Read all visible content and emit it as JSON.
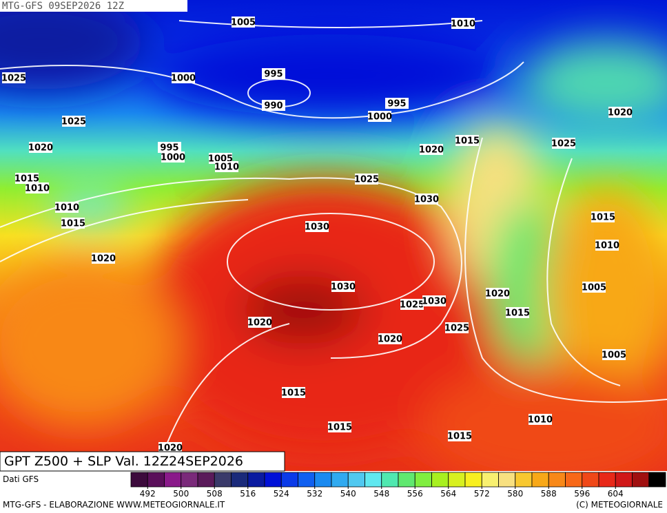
{
  "header": {
    "run": "MTG-GFS 09SEP2026 12Z",
    "title": "GPT Z500 + SLP Val. 12Z24SEP2026"
  },
  "isobar_labels": [
    "1005",
    "1010",
    "1025",
    "1000",
    "995",
    "990",
    "995",
    "1000",
    "1025",
    "1020",
    "1020",
    "995",
    "1000",
    "1015",
    "1025",
    "1020",
    "1005",
    "1010",
    "1015",
    "1010",
    "1025",
    "1030",
    "1010",
    "1015",
    "1030",
    "1015",
    "1010",
    "1020",
    "1030",
    "1005",
    "1020",
    "1025",
    "1030",
    "1015",
    "1020",
    "1025",
    "1020",
    "1005",
    "1015",
    "1010",
    "1015",
    "1015",
    "1020"
  ],
  "colorbar": {
    "lim": [
      488,
      616
    ],
    "ticks": [
      492,
      500,
      508,
      516,
      524,
      532,
      540,
      548,
      556,
      564,
      572,
      580,
      588,
      596,
      604
    ],
    "colors": [
      "#3c0a3c",
      "#5a0f5a",
      "#8a1a8a",
      "#7a2a7a",
      "#5a1a5a",
      "#3a3a6a",
      "#1a2a7a",
      "#0a1aa0",
      "#0010d8",
      "#0a3ae8",
      "#1060f0",
      "#1a8af0",
      "#30aaf0",
      "#50c8f0",
      "#60e8f0",
      "#50e8b0",
      "#60e870",
      "#80ee40",
      "#a8f020",
      "#d8f020",
      "#f8f020",
      "#f8f070",
      "#f8e080",
      "#f8c830",
      "#f8a818",
      "#f88818",
      "#f86818",
      "#f04818",
      "#e82818",
      "#d01818",
      "#a01010",
      "#000000"
    ]
  },
  "footer": {
    "source": "Dati GFS",
    "credit": "MTG-GFS - ELABORAZIONE WWW.METEOGIORNALE.IT",
    "copyright": "(C) METEOGIORNALE"
  }
}
